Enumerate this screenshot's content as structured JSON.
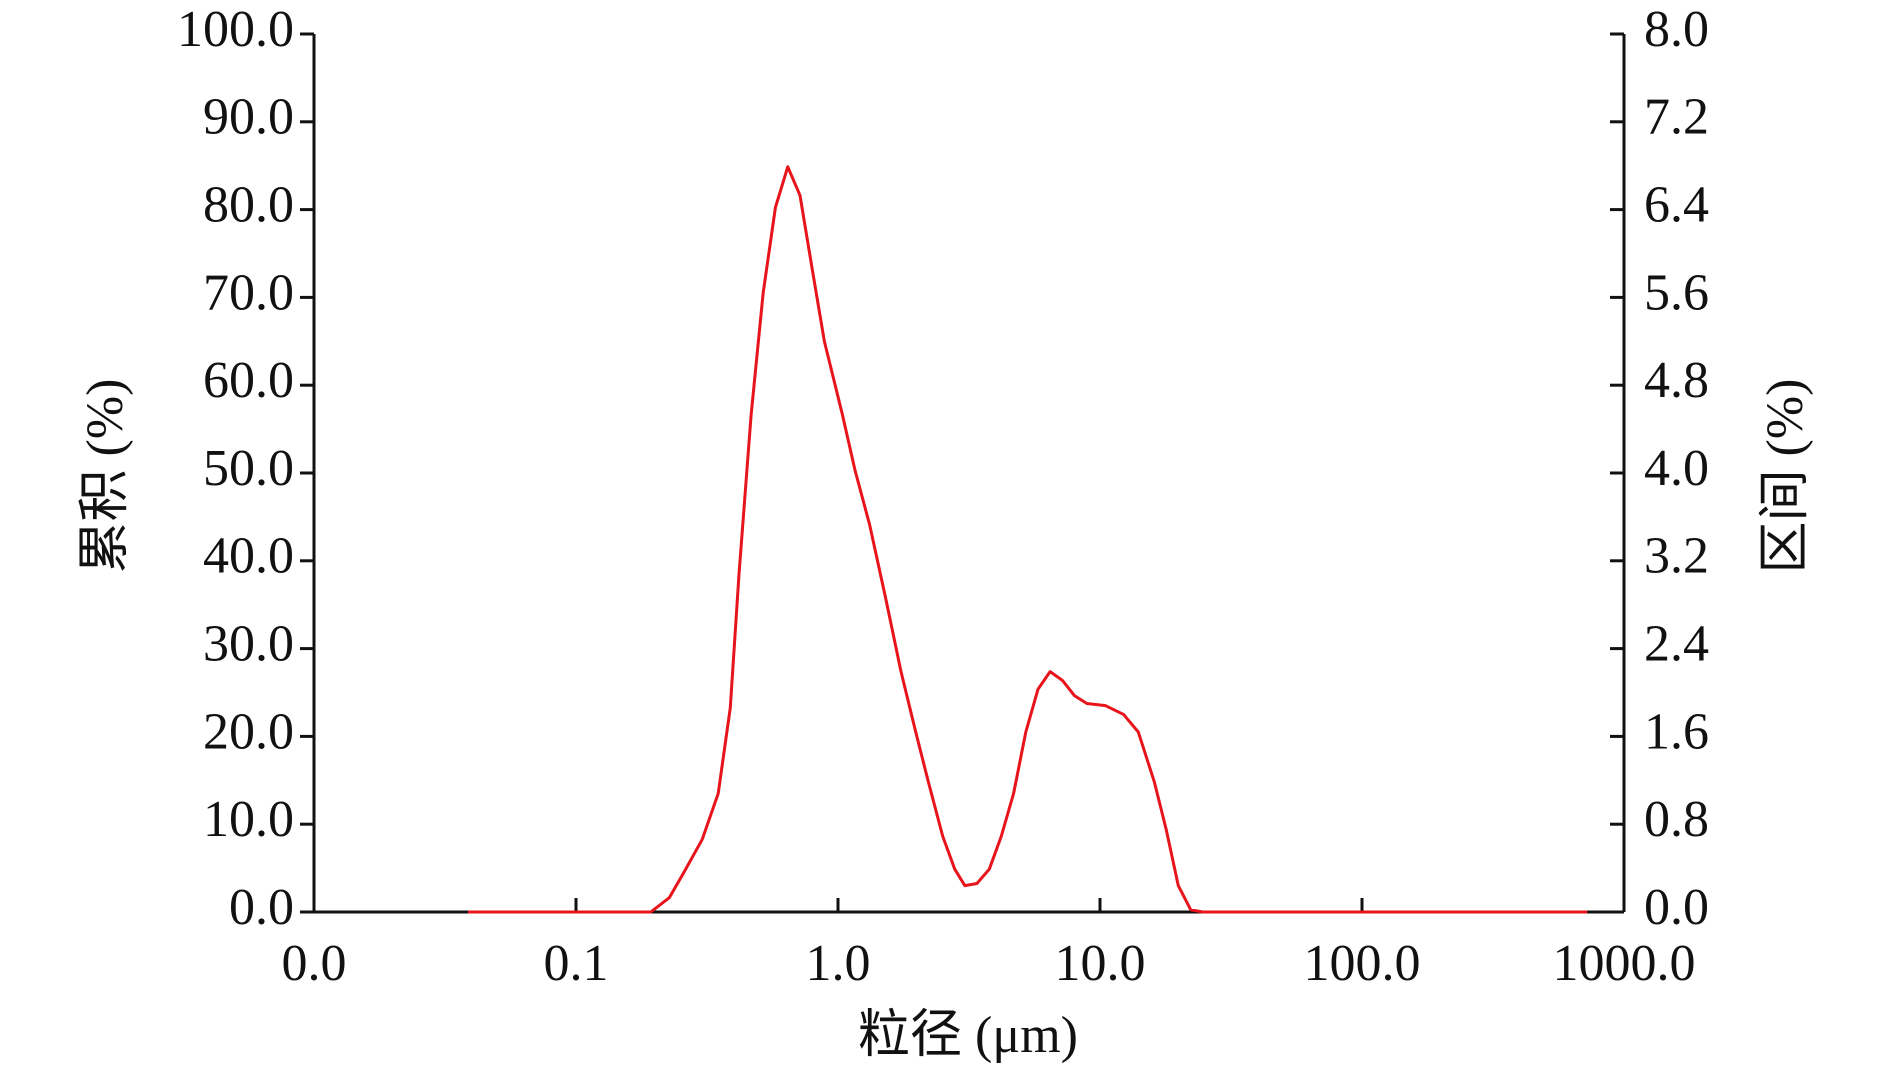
{
  "chart_data": {
    "type": "line",
    "xlabel": "粒径 (μm)",
    "ylabel": "累积 (%)",
    "y2label": "区间 (%)",
    "xscale": "log",
    "xlim": [
      0.01,
      1000
    ],
    "xticks": [
      {
        "value": 0.01,
        "label": "0.0"
      },
      0.1,
      {
        "value": 1,
        "label": "1.0"
      },
      {
        "value": 10,
        "label": "10.0"
      },
      {
        "value": 100,
        "label": "100.0"
      },
      {
        "value": 1000,
        "label": "1000.0"
      }
    ],
    "ylim": [
      0,
      100
    ],
    "yticks": [
      {
        "value": 0,
        "label": "0.0"
      },
      {
        "value": 10,
        "label": "10.0"
      },
      {
        "value": 20,
        "label": "20.0"
      },
      {
        "value": 30,
        "label": "30.0"
      },
      {
        "value": 40,
        "label": "40.0"
      },
      {
        "value": 50,
        "label": "50.0"
      },
      {
        "value": 60,
        "label": "60.0"
      },
      {
        "value": 70,
        "label": "70.0"
      },
      {
        "value": 80,
        "label": "80.0"
      },
      {
        "value": 90,
        "label": "90.0"
      },
      {
        "value": 100,
        "label": "100.0"
      }
    ],
    "y2lim": [
      0,
      8
    ],
    "y2ticks": [
      {
        "value": 0,
        "label": "0.0"
      },
      0.8,
      1.6,
      2.4,
      3.2,
      {
        "value": 4,
        "label": "4.0"
      },
      4.8,
      5.6,
      6.4,
      7.2,
      {
        "value": 8,
        "label": "8.0"
      }
    ],
    "x": [
      0.0387,
      0.193,
      0.227,
      0.258,
      0.303,
      0.349,
      0.388,
      0.419,
      0.466,
      0.518,
      0.577,
      0.643,
      0.716,
      0.797,
      0.887,
      1.04,
      1.16,
      1.32,
      1.52,
      1.74,
      1.98,
      2.21,
      2.51,
      2.79,
      3.05,
      3.39,
      3.78,
      4.2,
      4.68,
      5.21,
      5.8,
      6.45,
      7.19,
      8.0,
      8.91,
      10.5,
      12.3,
      14.0,
      16.1,
      17.9,
      19.9,
      22.2,
      24.7,
      724
    ],
    "series": [
      {
        "color": "#e8141c",
        "axis": "y2",
        "values": [
          0,
          0,
          0.13,
          0.36,
          0.66,
          1.08,
          1.86,
          3.08,
          4.53,
          5.64,
          6.42,
          6.79,
          6.53,
          5.86,
          5.2,
          4.53,
          4.03,
          3.53,
          2.86,
          2.19,
          1.64,
          1.19,
          0.69,
          0.39,
          0.24,
          0.26,
          0.39,
          0.69,
          1.08,
          1.64,
          2.03,
          2.19,
          2.11,
          1.97,
          1.9,
          1.88,
          1.8,
          1.64,
          1.19,
          0.75,
          0.24,
          0.02,
          0,
          0
        ]
      }
    ]
  }
}
